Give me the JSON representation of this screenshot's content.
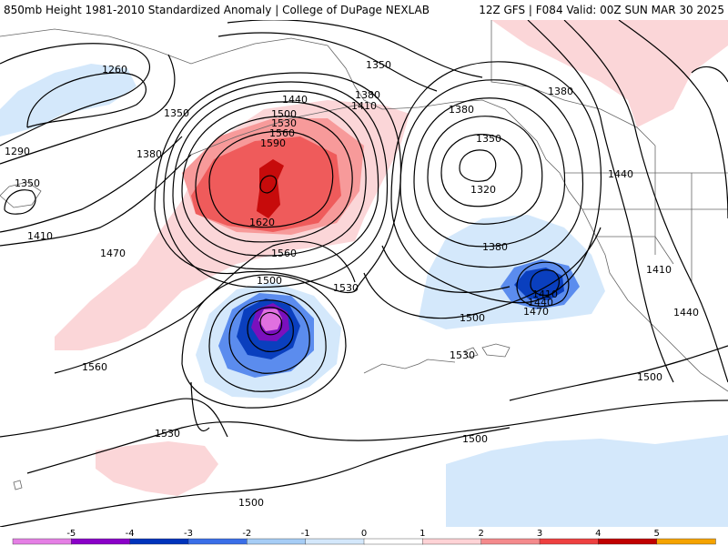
{
  "header": {
    "left": "850mb Height 1981-2010 Standardized Anomaly | College of DuPage NEXLAB",
    "right": "12Z GFS | F084 Valid: 00Z SUN MAR 30 2025"
  },
  "contour_labels": [
    "1260",
    "1350",
    "1380",
    "1290",
    "1350",
    "1410",
    "1470",
    "1440",
    "1500",
    "1530",
    "1560",
    "1590",
    "1620",
    "1560",
    "1530",
    "1500",
    "1560",
    "1530",
    "1350",
    "1380",
    "1410",
    "1380",
    "1350",
    "1320",
    "1380",
    "1410",
    "1440",
    "1470",
    "1500",
    "1440",
    "1410",
    "1440",
    "1500",
    "1530",
    "1500",
    "1500"
  ],
  "colorbar": {
    "ticks": [
      "-5",
      "-4",
      "-3",
      "-2",
      "-1",
      "0",
      "1",
      "2",
      "3",
      "4",
      "5"
    ],
    "colors": [
      "#e57fe5",
      "#8a00c8",
      "#0033bb",
      "#3a6ee8",
      "#a6cdf6",
      "#d4e8fb",
      "#ffffff",
      "#ffd3d6",
      "#f48a8c",
      "#ee4040",
      "#c00000",
      "#f5a300"
    ]
  },
  "colors": {
    "negative_1": "#d4e8fb",
    "negative_2": "#5b8cee",
    "negative_3": "#0a3fbe",
    "negative_4": "#7a10bd",
    "negative_5": "#e070e0",
    "positive_1": "#fbd6d8",
    "positive_2": "#f79a9a",
    "positive_3": "#ef5b5b",
    "positive_4": "#c70b0b",
    "contour": "#000000",
    "coast": "#666666"
  }
}
